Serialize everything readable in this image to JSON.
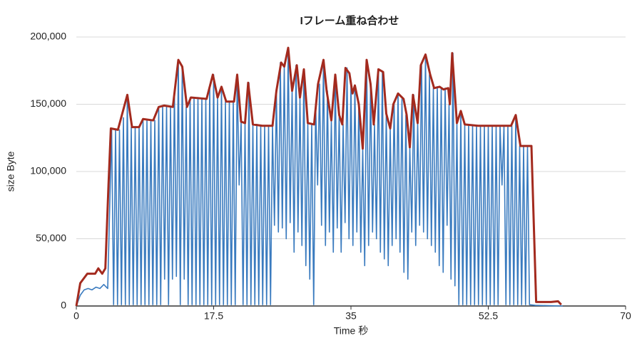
{
  "chart_data": {
    "type": "line",
    "title": "Iフレーム重ね合わせ",
    "x_label": "Time 秒",
    "y_label": "size Byte",
    "xlim": [
      0,
      70
    ],
    "xticks": [
      0,
      17.5,
      35,
      52.5,
      70
    ],
    "ylim": [
      0,
      200000
    ],
    "yticks": [
      0,
      {
        "value": 50000,
        "label": "50,000"
      },
      {
        "value": 100000,
        "label": "100,000"
      },
      {
        "value": 150000,
        "label": "150,000"
      },
      {
        "value": 200000,
        "label": "200,000"
      }
    ],
    "grid": true,
    "series": [
      {
        "color": "#3a7bbf",
        "x": [
          0,
          0.5,
          1,
          1.5,
          2,
          2.5,
          3,
          3.5,
          4,
          4.5,
          4.75,
          5,
          5.25,
          5.5,
          5.75,
          6,
          6.25,
          6.5,
          6.75,
          7,
          7.25,
          7.5,
          7.75,
          8,
          8.25,
          8.5,
          8.75,
          9,
          9.25,
          9.5,
          9.75,
          10,
          10.25,
          10.5,
          10.75,
          11,
          11.25,
          11.5,
          11.75,
          12,
          12.25,
          12.5,
          12.75,
          13,
          13.25,
          13.5,
          13.75,
          14,
          14.25,
          14.5,
          14.75,
          15,
          15.25,
          15.5,
          15.75,
          16,
          16.25,
          16.5,
          16.75,
          17,
          17.25,
          17.5,
          17.75,
          18,
          18.25,
          18.5,
          18.75,
          19,
          19.25,
          19.5,
          19.75,
          20,
          20.25,
          20.5,
          20.75,
          21,
          21.25,
          21.5,
          21.75,
          22,
          22.25,
          22.5,
          22.75,
          23,
          23.25,
          23.5,
          23.75,
          24,
          24.25,
          24.5,
          24.75,
          25,
          25.25,
          25.5,
          25.75,
          26,
          26.25,
          26.5,
          26.75,
          27,
          27.25,
          27.5,
          27.75,
          28,
          28.25,
          28.5,
          28.75,
          29,
          29.25,
          29.5,
          29.75,
          30,
          30.25,
          30.5,
          30.75,
          31,
          31.25,
          31.5,
          31.75,
          32,
          32.25,
          32.5,
          32.75,
          33,
          33.25,
          33.5,
          33.75,
          34,
          34.25,
          34.5,
          34.75,
          35,
          35.25,
          35.5,
          35.75,
          36,
          36.25,
          36.5,
          36.75,
          37,
          37.25,
          37.5,
          37.75,
          38,
          38.25,
          38.5,
          38.75,
          39,
          39.25,
          39.5,
          39.75,
          40,
          40.25,
          40.5,
          40.75,
          41,
          41.25,
          41.5,
          41.75,
          42,
          42.25,
          42.5,
          42.75,
          43,
          43.25,
          43.5,
          43.75,
          44,
          44.25,
          44.5,
          44.75,
          45,
          45.25,
          45.5,
          45.75,
          46,
          46.25,
          46.5,
          46.75,
          47,
          47.25,
          47.5,
          47.75,
          48,
          48.25,
          48.5,
          48.75,
          49,
          49.25,
          49.5,
          49.75,
          50,
          50.25,
          50.5,
          50.75,
          51,
          51.25,
          51.5,
          51.75,
          52,
          52.25,
          52.5,
          52.75,
          53,
          53.25,
          53.5,
          53.75,
          54,
          54.25,
          54.5,
          54.75,
          55,
          55.25,
          55.5,
          55.75,
          56,
          56.25,
          56.5,
          56.75,
          57,
          57.25,
          57.5,
          57.75,
          58.5,
          62
        ],
        "values": [
          0,
          8000,
          12000,
          13000,
          12000,
          14000,
          13000,
          16000,
          13000,
          132000,
          1000,
          131000,
          1000,
          131000,
          1000,
          140000,
          1000,
          157000,
          1000,
          133000,
          1000,
          133000,
          1000,
          133000,
          1000,
          139000,
          1000,
          138000,
          1000,
          138000,
          1000,
          138000,
          1000,
          148000,
          1000,
          149000,
          20000,
          149000,
          1000,
          148000,
          20000,
          160000,
          22000,
          183000,
          1000,
          178000,
          20000,
          148000,
          1000,
          155000,
          1000,
          155000,
          1000,
          155000,
          1000,
          154000,
          1000,
          154000,
          1000,
          163000,
          1000,
          172000,
          1000,
          155000,
          1000,
          163000,
          1000,
          152000,
          1000,
          152000,
          1000,
          152000,
          1000,
          172000,
          90000,
          137000,
          1000,
          136000,
          1000,
          166000,
          1000,
          135000,
          1000,
          135000,
          1000,
          134000,
          1000,
          134000,
          1000,
          134000,
          1000,
          134000,
          60000,
          160000,
          55000,
          181000,
          58000,
          178000,
          50000,
          192000,
          62000,
          160000,
          40000,
          179000,
          55000,
          155000,
          45000,
          176000,
          30000,
          136000,
          20000,
          135000,
          1000,
          150000,
          90000,
          165000,
          60000,
          183000,
          45000,
          160000,
          55000,
          138000,
          40000,
          172000,
          58000,
          142000,
          40000,
          135000,
          62000,
          177000,
          50000,
          165000,
          45000,
          164000,
          55000,
          150000,
          40000,
          117000,
          30000,
          183000,
          45000,
          165000,
          55000,
          135000,
          50000,
          176000,
          40000,
          174000,
          35000,
          143000,
          30000,
          132000,
          45000,
          150000,
          50000,
          158000,
          40000,
          154000,
          25000,
          142000,
          20000,
          118000,
          55000,
          157000,
          45000,
          136000,
          60000,
          179000,
          55000,
          187000,
          50000,
          172000,
          45000,
          162000,
          40000,
          163000,
          30000,
          161000,
          25000,
          162000,
          60000,
          150000,
          20000,
          188000,
          15000,
          136000,
          1000,
          145000,
          1000,
          135000,
          1000,
          135000,
          1000,
          134000,
          1000,
          134000,
          1000,
          134000,
          1000,
          134000,
          1000,
          134000,
          1000,
          134000,
          1000,
          134000,
          1000,
          134000,
          90000,
          134000,
          1000,
          134000,
          1000,
          134000,
          1000,
          142000,
          1000,
          119000,
          1000,
          119000,
          1000,
          119000,
          1000,
          500,
          0
        ]
      },
      {
        "color": "#a32a1e",
        "x": [
          0,
          0.5,
          1.4,
          2.4,
          2.8,
          3.3,
          3.7,
          4.1,
          4.4,
          5.3,
          6.5,
          7.1,
          8,
          8.5,
          9.8,
          10.5,
          11.2,
          12.3,
          13,
          13.5,
          14.1,
          14.6,
          16.6,
          17.4,
          18,
          18.5,
          19.1,
          20.1,
          20.5,
          21,
          21.5,
          21.9,
          22.5,
          23.7,
          25,
          25.5,
          26.1,
          26.5,
          27,
          27.5,
          28.1,
          28.5,
          29,
          29.5,
          30.3,
          30.8,
          31.5,
          31.9,
          32.5,
          33,
          33.5,
          33.9,
          34.3,
          34.8,
          35.2,
          35.5,
          36,
          36.5,
          37,
          37.5,
          37.9,
          38.5,
          39.1,
          39.5,
          40,
          40.4,
          41,
          41.7,
          42.1,
          42.5,
          42.9,
          43.5,
          43.9,
          44.5,
          45.1,
          45.6,
          46.3,
          46.8,
          47.4,
          47.6,
          47.9,
          48.5,
          49,
          49.5,
          51.2,
          53,
          55.4,
          56,
          56.6,
          58,
          58.6,
          60.5,
          61.4,
          61.8
        ],
        "values": [
          0,
          17000,
          24000,
          24000,
          28000,
          24000,
          28000,
          90000,
          132000,
          131000,
          157000,
          133000,
          133000,
          139000,
          138000,
          148000,
          149000,
          148000,
          183000,
          178000,
          148000,
          155000,
          154000,
          172000,
          155000,
          163000,
          152000,
          152000,
          172000,
          137000,
          136000,
          166000,
          135000,
          134000,
          134000,
          160000,
          181000,
          178000,
          192000,
          160000,
          179000,
          155000,
          176000,
          136000,
          135000,
          165000,
          183000,
          160000,
          138000,
          172000,
          142000,
          135000,
          177000,
          173000,
          158000,
          164000,
          150000,
          117000,
          183000,
          165000,
          135000,
          176000,
          174000,
          143000,
          132000,
          150000,
          158000,
          154000,
          142000,
          118000,
          157000,
          136000,
          179000,
          187000,
          172000,
          162000,
          163000,
          161000,
          162000,
          150000,
          188000,
          136000,
          145000,
          135000,
          134000,
          134000,
          134000,
          142000,
          119000,
          119000,
          3000,
          3000,
          3500,
          1000
        ]
      }
    ]
  }
}
